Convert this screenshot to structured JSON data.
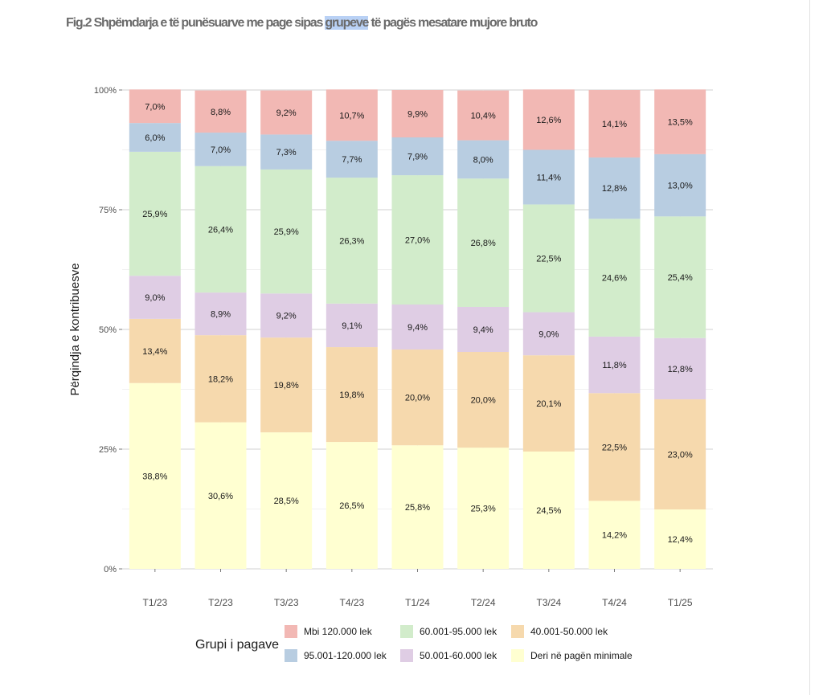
{
  "figure": {
    "title_prefix": "Fig.2 Shpëmdarja e të punësuarve me page sipas ",
    "title_highlight": "grupeve",
    "title_suffix": " të pagës mesatare mujore bruto"
  },
  "chart_data": {
    "type": "bar",
    "stacked": true,
    "title": "Fig.2 Shpëmdarja e të punësuarve me page sipas grupeve të pagës mesatare mujore bruto",
    "xlabel": "",
    "ylabel": "Përqindja e kontribuesve",
    "ylim": [
      0,
      100
    ],
    "yticks": [
      0,
      25,
      50,
      75,
      100
    ],
    "ytick_labels": [
      "0%",
      "25%",
      "50%",
      "75%",
      "100%"
    ],
    "grid": true,
    "legend_title": "Grupi i pagave",
    "legend_position": "bottom",
    "categories": [
      "T1/23",
      "T2/23",
      "T3/23",
      "T4/23",
      "T1/24",
      "T2/24",
      "T3/24",
      "T4/24",
      "T1/25"
    ],
    "series": [
      {
        "name": "Deri në pagën minimale",
        "color": "#ffffd1",
        "values": [
          38.8,
          30.6,
          28.5,
          26.5,
          25.8,
          25.3,
          24.5,
          14.2,
          12.4
        ]
      },
      {
        "name": "40.001-50.000 lek",
        "color": "#f6d9ad",
        "values": [
          13.4,
          18.2,
          19.8,
          19.8,
          20.0,
          20.0,
          20.1,
          22.5,
          23.0
        ]
      },
      {
        "name": "50.001-60.000 lek",
        "color": "#dfcde4",
        "values": [
          9.0,
          8.9,
          9.2,
          9.1,
          9.4,
          9.4,
          9.0,
          11.8,
          12.8
        ]
      },
      {
        "name": "60.001-95.000 lek",
        "color": "#d2eccb",
        "values": [
          25.9,
          26.4,
          25.9,
          26.3,
          27.0,
          26.8,
          22.5,
          24.6,
          25.4
        ]
      },
      {
        "name": "95.001-120.000 lek",
        "color": "#b8cde1",
        "values": [
          6.0,
          7.0,
          7.3,
          7.7,
          7.9,
          8.0,
          11.4,
          12.8,
          13.0
        ]
      },
      {
        "name": "Mbi 120.000 lek",
        "color": "#f2b8b4",
        "values": [
          7.0,
          8.8,
          9.2,
          10.7,
          9.9,
          10.4,
          12.6,
          14.1,
          13.5
        ]
      }
    ],
    "value_labels": [
      [
        "38,8%",
        "30,6%",
        "28,5%",
        "26,5%",
        "25,8%",
        "25,3%",
        "24,5%",
        "14,2%",
        "12,4%"
      ],
      [
        "13,4%",
        "18,2%",
        "19,8%",
        "19,8%",
        "20,0%",
        "20,0%",
        "20,1%",
        "22,5%",
        "23,0%"
      ],
      [
        "9,0%",
        "8,9%",
        "9,2%",
        "9,1%",
        "9,4%",
        "9,4%",
        "9,0%",
        "11,8%",
        "12,8%"
      ],
      [
        "25,9%",
        "26,4%",
        "25,9%",
        "26,3%",
        "27,0%",
        "26,8%",
        "22,5%",
        "24,6%",
        "25,4%"
      ],
      [
        "6,0%",
        "7,0%",
        "7,3%",
        "7,7%",
        "7,9%",
        "8,0%",
        "11,4%",
        "12,8%",
        "13,0%"
      ],
      [
        "7,0%",
        "8,8%",
        "9,2%",
        "10,7%",
        "9,9%",
        "10,4%",
        "12,6%",
        "14,1%",
        "13,5%"
      ]
    ]
  },
  "legend": {
    "title": "Grupi i pagave",
    "items": [
      {
        "label": "Mbi 120.000 lek",
        "color": "#f2b8b4"
      },
      {
        "label": "60.001-95.000 lek",
        "color": "#d2eccb"
      },
      {
        "label": "40.001-50.000 lek",
        "color": "#f6d9ad"
      },
      {
        "label": "95.001-120.000 lek",
        "color": "#b8cde1"
      },
      {
        "label": "50.001-60.000 lek",
        "color": "#dfcde4"
      },
      {
        "label": "Deri në pagën minimale",
        "color": "#ffffd1"
      }
    ]
  }
}
